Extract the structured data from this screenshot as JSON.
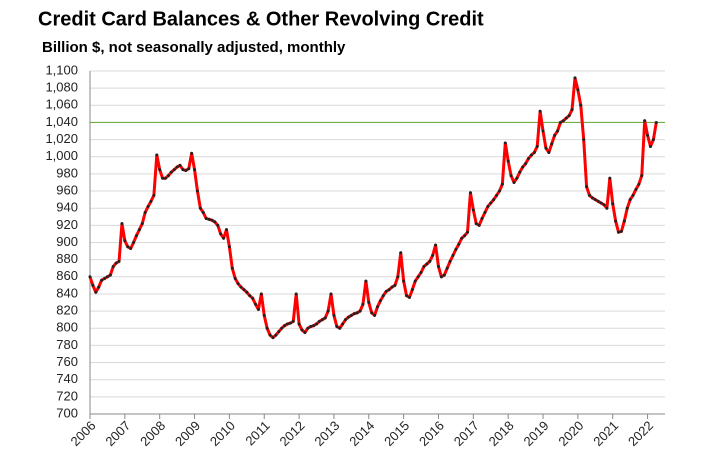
{
  "chart_data": {
    "type": "line",
    "title": "Credit Card Balances & Other Revolving Credit",
    "subtitle": "Billion $, not seasonally adjusted, monthly",
    "x": [
      2006.0,
      2006.083,
      2006.167,
      2006.25,
      2006.333,
      2006.417,
      2006.5,
      2006.583,
      2006.667,
      2006.75,
      2006.833,
      2006.917,
      2007.0,
      2007.083,
      2007.167,
      2007.25,
      2007.333,
      2007.417,
      2007.5,
      2007.583,
      2007.667,
      2007.75,
      2007.833,
      2007.917,
      2008.0,
      2008.083,
      2008.167,
      2008.25,
      2008.333,
      2008.417,
      2008.5,
      2008.583,
      2008.667,
      2008.75,
      2008.833,
      2008.917,
      2009.0,
      2009.083,
      2009.167,
      2009.25,
      2009.333,
      2009.417,
      2009.5,
      2009.583,
      2009.667,
      2009.75,
      2009.833,
      2009.917,
      2010.0,
      2010.083,
      2010.167,
      2010.25,
      2010.333,
      2010.417,
      2010.5,
      2010.583,
      2010.667,
      2010.75,
      2010.833,
      2010.917,
      2011.0,
      2011.083,
      2011.167,
      2011.25,
      2011.333,
      2011.417,
      2011.5,
      2011.583,
      2011.667,
      2011.75,
      2011.833,
      2011.917,
      2012.0,
      2012.083,
      2012.167,
      2012.25,
      2012.333,
      2012.417,
      2012.5,
      2012.583,
      2012.667,
      2012.75,
      2012.833,
      2012.917,
      2013.0,
      2013.083,
      2013.167,
      2013.25,
      2013.333,
      2013.417,
      2013.5,
      2013.583,
      2013.667,
      2013.75,
      2013.833,
      2013.917,
      2014.0,
      2014.083,
      2014.167,
      2014.25,
      2014.333,
      2014.417,
      2014.5,
      2014.583,
      2014.667,
      2014.75,
      2014.833,
      2014.917,
      2015.0,
      2015.083,
      2015.167,
      2015.25,
      2015.333,
      2015.417,
      2015.5,
      2015.583,
      2015.667,
      2015.75,
      2015.833,
      2015.917,
      2016.0,
      2016.083,
      2016.167,
      2016.25,
      2016.333,
      2016.417,
      2016.5,
      2016.583,
      2016.667,
      2016.75,
      2016.833,
      2016.917,
      2017.0,
      2017.083,
      2017.167,
      2017.25,
      2017.333,
      2017.417,
      2017.5,
      2017.583,
      2017.667,
      2017.75,
      2017.833,
      2017.917,
      2018.0,
      2018.083,
      2018.167,
      2018.25,
      2018.333,
      2018.417,
      2018.5,
      2018.583,
      2018.667,
      2018.75,
      2018.833,
      2018.917,
      2019.0,
      2019.083,
      2019.167,
      2019.25,
      2019.333,
      2019.417,
      2019.5,
      2019.583,
      2019.667,
      2019.75,
      2019.833,
      2019.917,
      2020.0,
      2020.083,
      2020.167,
      2020.25,
      2020.333,
      2020.417,
      2020.5,
      2020.583,
      2020.667,
      2020.75,
      2020.833,
      2020.917,
      2021.0,
      2021.083,
      2021.167,
      2021.25,
      2021.333,
      2021.417,
      2021.5,
      2021.583,
      2021.667,
      2021.75,
      2021.833,
      2021.917,
      2022.0,
      2022.083,
      2022.167,
      2022.25
    ],
    "series": [
      {
        "name": "Credit Card Balances & Other Revolving Credit",
        "color": "#ff0000",
        "marker_color": "#222222",
        "values": [
          860,
          850,
          842,
          848,
          856,
          858,
          860,
          862,
          872,
          876,
          878,
          922,
          902,
          895,
          893,
          900,
          908,
          915,
          922,
          935,
          942,
          948,
          955,
          1002,
          985,
          975,
          975,
          978,
          982,
          985,
          988,
          990,
          985,
          984,
          986,
          1004,
          985,
          960,
          940,
          935,
          928,
          927,
          926,
          924,
          920,
          910,
          905,
          915,
          895,
          870,
          858,
          852,
          848,
          845,
          842,
          838,
          835,
          828,
          822,
          840,
          815,
          800,
          792,
          789,
          792,
          796,
          800,
          803,
          805,
          806,
          808,
          840,
          805,
          798,
          795,
          800,
          802,
          803,
          805,
          808,
          810,
          812,
          820,
          840,
          815,
          802,
          800,
          805,
          810,
          813,
          815,
          817,
          818,
          820,
          828,
          855,
          830,
          818,
          815,
          825,
          832,
          838,
          843,
          845,
          848,
          850,
          860,
          888,
          855,
          838,
          836,
          845,
          855,
          860,
          865,
          872,
          875,
          878,
          885,
          897,
          872,
          860,
          862,
          870,
          878,
          885,
          892,
          898,
          905,
          908,
          912,
          958,
          938,
          922,
          920,
          928,
          935,
          942,
          946,
          950,
          955,
          960,
          968,
          1016,
          995,
          978,
          970,
          975,
          982,
          988,
          992,
          998,
          1002,
          1005,
          1012,
          1053,
          1030,
          1010,
          1005,
          1015,
          1025,
          1030,
          1040,
          1042,
          1045,
          1048,
          1055,
          1092,
          1078,
          1060,
          1020,
          965,
          955,
          952,
          950,
          948,
          946,
          944,
          940,
          975,
          945,
          925,
          912,
          913,
          925,
          940,
          950,
          955,
          962,
          968,
          978,
          1042,
          1025,
          1012,
          1020,
          1040
        ]
      }
    ],
    "xlim": [
      2006,
      2022.5
    ],
    "xticks": [
      2006,
      2007,
      2008,
      2009,
      2010,
      2011,
      2012,
      2013,
      2014,
      2015,
      2016,
      2017,
      2018,
      2019,
      2020,
      2021,
      2022
    ],
    "ylim": [
      700,
      1100
    ],
    "yticks": [
      700,
      720,
      740,
      760,
      780,
      800,
      820,
      840,
      860,
      880,
      900,
      920,
      940,
      960,
      980,
      {
        "value": 1000,
        "label": "1,000"
      },
      {
        "value": 1020,
        "label": "1,020"
      },
      {
        "value": 1040,
        "label": "1,040"
      },
      {
        "value": 1060,
        "label": "1,060"
      },
      {
        "value": 1080,
        "label": "1,080"
      },
      {
        "value": 1100,
        "label": "1,100"
      }
    ],
    "grid": true,
    "reference_line": {
      "value": 1040,
      "color": "#70ad47"
    }
  }
}
